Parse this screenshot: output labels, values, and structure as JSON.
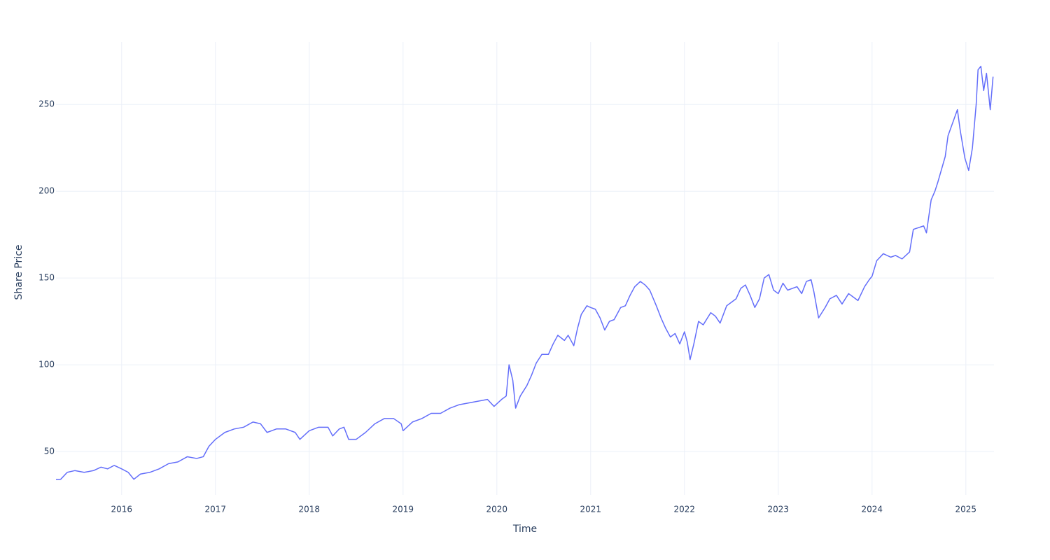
{
  "chart_data": {
    "type": "line",
    "xlabel": "Time",
    "ylabel": "Share Price",
    "x": [
      2015.3,
      2015.35,
      2015.42,
      2015.5,
      2015.6,
      2015.7,
      2015.78,
      2015.85,
      2015.92,
      2016.0,
      2016.07,
      2016.13,
      2016.2,
      2016.3,
      2016.4,
      2016.5,
      2016.6,
      2016.7,
      2016.8,
      2016.87,
      2016.93,
      2017.0,
      2017.1,
      2017.2,
      2017.3,
      2017.4,
      2017.48,
      2017.55,
      2017.65,
      2017.75,
      2017.85,
      2017.9,
      2018.0,
      2018.1,
      2018.2,
      2018.25,
      2018.32,
      2018.37,
      2018.42,
      2018.5,
      2018.6,
      2018.7,
      2018.8,
      2018.9,
      2018.98,
      2019.0,
      2019.1,
      2019.2,
      2019.3,
      2019.4,
      2019.5,
      2019.6,
      2019.7,
      2019.8,
      2019.9,
      2019.97,
      2020.05,
      2020.1,
      2020.13,
      2020.17,
      2020.2,
      2020.25,
      2020.32,
      2020.37,
      2020.42,
      2020.48,
      2020.55,
      2020.6,
      2020.65,
      2020.72,
      2020.76,
      2020.82,
      2020.86,
      2020.9,
      2020.96,
      2021.0,
      2021.05,
      2021.1,
      2021.15,
      2021.2,
      2021.25,
      2021.32,
      2021.37,
      2021.42,
      2021.47,
      2021.53,
      2021.58,
      2021.63,
      2021.7,
      2021.75,
      2021.8,
      2021.85,
      2021.9,
      2021.95,
      2022.0,
      2022.03,
      2022.06,
      2022.1,
      2022.15,
      2022.2,
      2022.28,
      2022.33,
      2022.38,
      2022.45,
      2022.5,
      2022.55,
      2022.6,
      2022.65,
      2022.7,
      2022.75,
      2022.8,
      2022.85,
      2022.9,
      2022.95,
      2023.0,
      2023.05,
      2023.1,
      2023.2,
      2023.25,
      2023.3,
      2023.35,
      2023.38,
      2023.43,
      2023.5,
      2023.55,
      2023.62,
      2023.68,
      2023.75,
      2023.8,
      2023.85,
      2023.92,
      2023.97,
      2024.0,
      2024.05,
      2024.12,
      2024.2,
      2024.25,
      2024.32,
      2024.4,
      2024.44,
      2024.55,
      2024.58,
      2024.63,
      2024.67,
      2024.7,
      2024.78,
      2024.81,
      2024.85,
      2024.91,
      2024.94,
      2024.99,
      2025.03,
      2025.07,
      2025.11,
      2025.13,
      2025.16,
      2025.19,
      2025.22,
      2025.26,
      2025.29
    ],
    "values": [
      34,
      34,
      38,
      39,
      38,
      39,
      41,
      40,
      42,
      40,
      38,
      34,
      37,
      38,
      40,
      43,
      44,
      47,
      46,
      47,
      53,
      57,
      61,
      63,
      64,
      67,
      66,
      61,
      63,
      63,
      61,
      57,
      62,
      64,
      64,
      59,
      63,
      64,
      57,
      57,
      61,
      66,
      69,
      69,
      66,
      62,
      67,
      69,
      72,
      72,
      75,
      77,
      78,
      79,
      80,
      76,
      80,
      82,
      100,
      91,
      75,
      82,
      88,
      94,
      101,
      106,
      106,
      112,
      117,
      114,
      117,
      111,
      121,
      129,
      134,
      133,
      132,
      127,
      120,
      125,
      126,
      133,
      134,
      140,
      145,
      148,
      146,
      143,
      134,
      127,
      121,
      116,
      118,
      112,
      119,
      113,
      103,
      112,
      125,
      123,
      130,
      128,
      124,
      134,
      136,
      138,
      144,
      146,
      140,
      133,
      138,
      150,
      152,
      143,
      141,
      147,
      143,
      145,
      141,
      148,
      149,
      142,
      127,
      133,
      138,
      140,
      135,
      141,
      139,
      137,
      145,
      149,
      151,
      160,
      164,
      162,
      163,
      161,
      165,
      178,
      180,
      176,
      195,
      200,
      205,
      220,
      232,
      238,
      247,
      235,
      219,
      212,
      225,
      250,
      270,
      272,
      258,
      268,
      247,
      266
    ],
    "color": "#636efa",
    "xlim": [
      2015.3,
      2025.3
    ],
    "xticks": [
      2016,
      2017,
      2018,
      2019,
      2020,
      2021,
      2022,
      2023,
      2024,
      2025
    ],
    "ylim": [
      25,
      286
    ],
    "yticks": [
      50,
      100,
      150,
      200,
      250
    ],
    "grid": true
  }
}
